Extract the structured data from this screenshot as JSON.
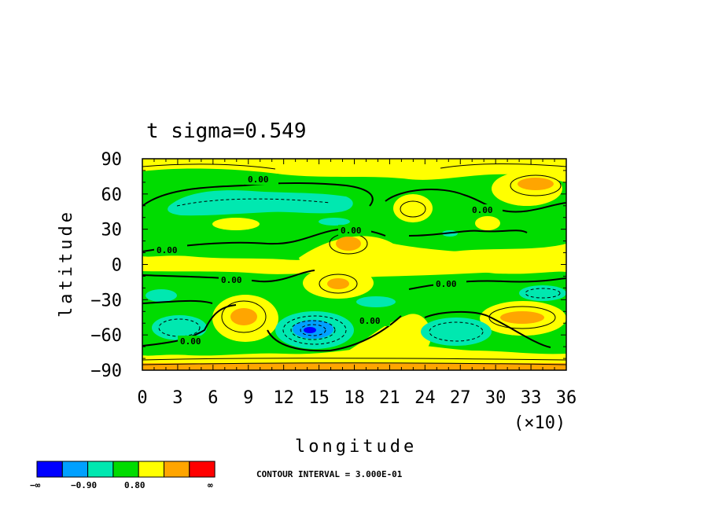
{
  "chart_data": {
    "type": "heatmap",
    "title": "t sigma=0.549",
    "xlabel": "longitude",
    "ylabel": "latitude",
    "x_multiplier_label": "(×10)",
    "xlim": [
      0,
      36
    ],
    "ylim": [
      -90,
      90
    ],
    "x_ticks": [
      "0",
      "3",
      "6",
      "9",
      "12",
      "15",
      "18",
      "21",
      "24",
      "27",
      "30",
      "33",
      "36"
    ],
    "y_ticks": [
      "90",
      "60",
      "30",
      "0",
      "−30",
      "−60",
      "−90"
    ],
    "contour_interval_text": "CONTOUR INTERVAL = 3.000E-01",
    "contour_labels": [
      "0.00",
      "0.00",
      "0.00",
      "0.00",
      "0.00",
      "0.00",
      "0.00",
      "0.00"
    ],
    "colorbar": {
      "colors": [
        "#0000ff",
        "#00a0ff",
        "#00e8b0",
        "#00dc00",
        "#ffff00",
        "#ffa500",
        "#ff0000"
      ],
      "labels": [
        "−∞",
        "−0.90",
        "0.80",
        "∞"
      ]
    },
    "colors": {
      "background_field": "#ffff00",
      "green": "#00dc00",
      "cyan": "#00e8b0",
      "blue_light": "#00a0ff",
      "blue": "#0000ff",
      "orange": "#ffa500"
    }
  }
}
